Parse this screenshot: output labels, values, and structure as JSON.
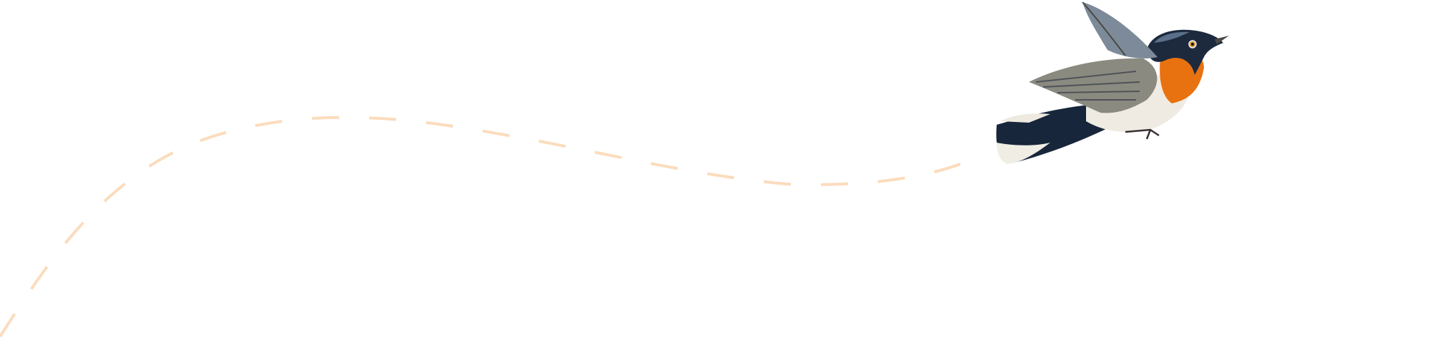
{
  "illustration": {
    "subject": "bird-in-flight",
    "flight_path_color": "#fbdcbd",
    "colors": {
      "background": "#ffffff",
      "throat": "#e8720f",
      "head": "#1d2a3e",
      "wing": "#8a8a80",
      "belly": "#efebe2",
      "tail": "#17263a"
    }
  }
}
